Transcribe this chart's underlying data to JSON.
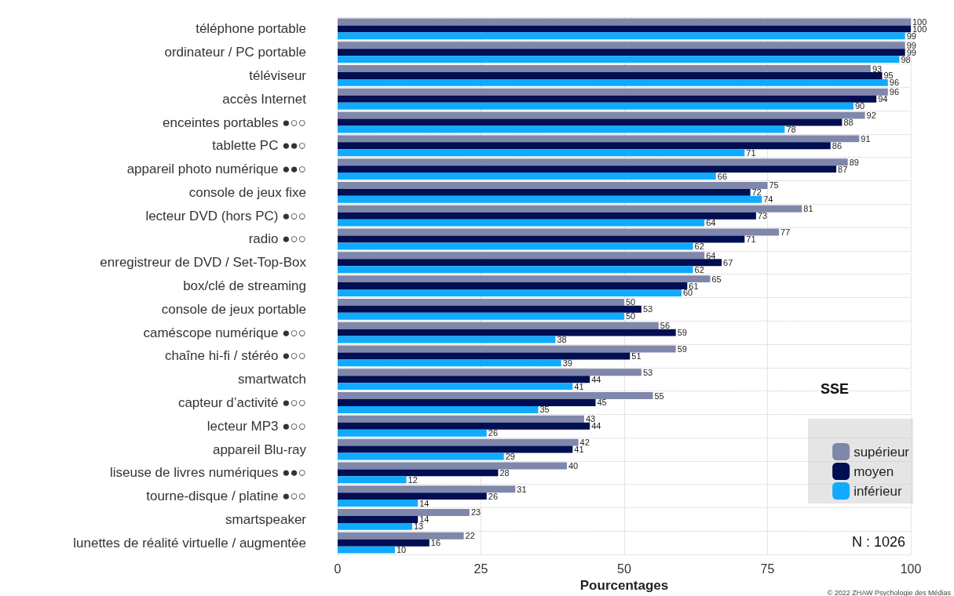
{
  "chart_data": {
    "type": "bar",
    "orientation": "horizontal",
    "xlabel": "Pourcentages",
    "legend_title": "SSE",
    "categories": [
      "téléphone portable",
      "ordinateur / PC portable",
      "téléviseur",
      "accès Internet",
      "enceintes portables ●○○",
      "tablette PC ●●○",
      "appareil photo numérique ●●○",
      "console de jeux fixe",
      "lecteur DVD (hors PC) ●○○",
      "radio ●○○",
      "enregistreur de DVD / Set-Top-Box",
      "box/clé de streaming",
      "console de jeux portable",
      "caméscope numérique ●○○",
      "chaîne hi-fi / stéréo ●○○",
      "smartwatch",
      "capteur d’activité ●○○",
      "lecteur MP3 ●○○",
      "appareil Blu-ray",
      "liseuse de livres numériques ●●○",
      "tourne-disque / platine ●○○",
      "smartspeaker",
      "lunettes de réalité virtuelle / augmentée"
    ],
    "series": [
      {
        "name": "supérieur",
        "color": "#7f87ab",
        "values": [
          100,
          99,
          93,
          96,
          92,
          91,
          89,
          75,
          81,
          77,
          64,
          65,
          50,
          56,
          59,
          53,
          55,
          43,
          42,
          40,
          31,
          23,
          22
        ]
      },
      {
        "name": "moyen",
        "color": "#000e52",
        "values": [
          100,
          99,
          95,
          94,
          88,
          86,
          87,
          72,
          73,
          71,
          67,
          61,
          53,
          59,
          51,
          44,
          45,
          44,
          41,
          28,
          26,
          14,
          16
        ]
      },
      {
        "name": "inférieur",
        "color": "#10aaff",
        "values": [
          99,
          98,
          96,
          90,
          78,
          71,
          66,
          74,
          64,
          62,
          62,
          60,
          50,
          38,
          39,
          41,
          35,
          26,
          29,
          12,
          14,
          13,
          10
        ]
      }
    ],
    "xlim": [
      0,
      100
    ],
    "xticks": [
      0,
      25,
      50,
      75,
      100
    ],
    "grid": true,
    "legend": "bottom right",
    "data_labels": true,
    "annotations": [
      "N : 1026",
      "© 2022 ZHAW Psychologie des Médias"
    ]
  }
}
